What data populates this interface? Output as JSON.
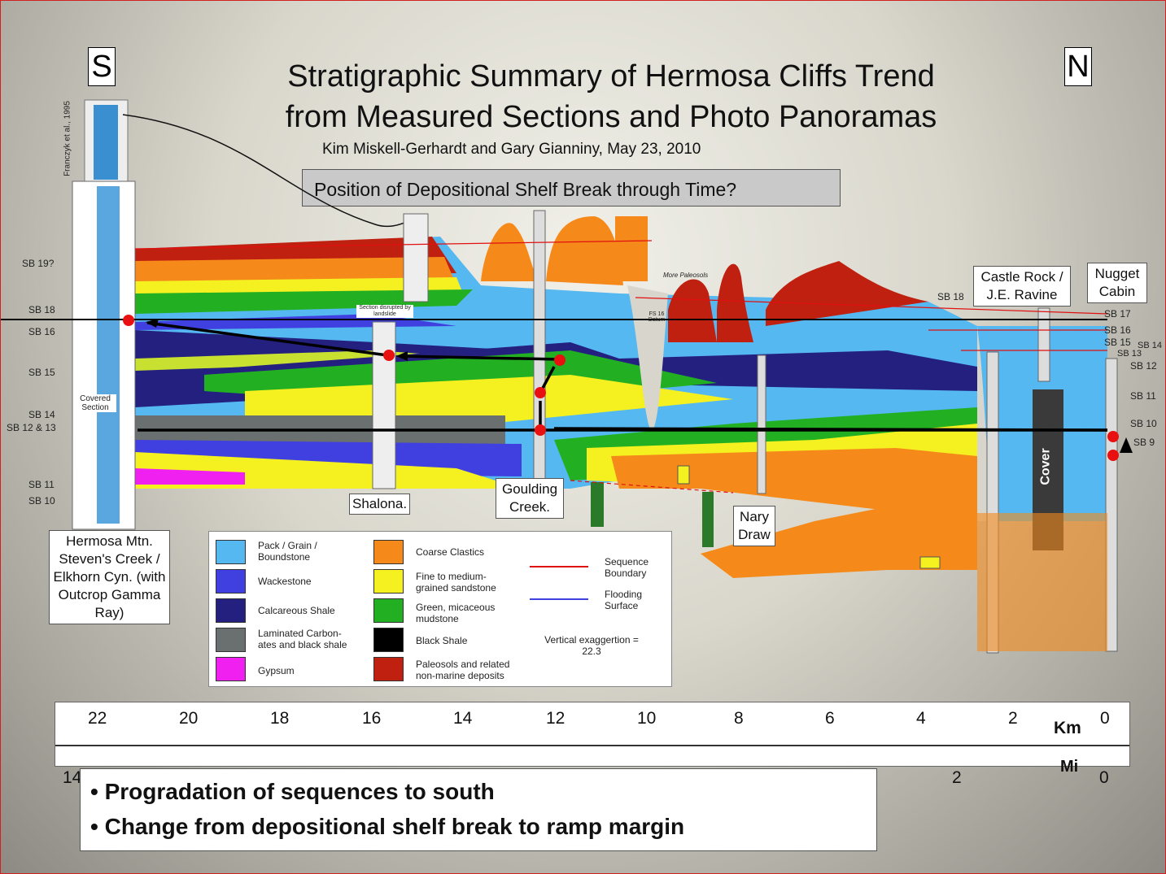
{
  "title": {
    "line1": "Stratigraphic Summary of Hermosa Cliffs Trend",
    "line2": "from Measured Sections and Photo Panoramas"
  },
  "authors": "Kim Miskell-Gerhardt and Gary Gianniny, May 23, 2010",
  "question": "Position of Depositional Shelf Break through Time?",
  "directions": {
    "south": "S",
    "north": "N"
  },
  "sb_left": [
    "SB 19?",
    "SB 18",
    "SB 16",
    "SB 15",
    "SB 14",
    "SB 12 & 13",
    "SB 11",
    "SB 10"
  ],
  "sb_right": [
    "SB 18",
    "SB 17",
    "SB 16",
    "SB 15",
    "SB 14",
    "SB 13",
    "SB 12",
    "SB 11",
    "SB 10",
    "SB 9"
  ],
  "sections": {
    "hermosa": "Hermosa Mtn. Steven's Creek / Elkhorn Cyn. (with Outcrop Gamma Ray)",
    "shalona": "Shalona.",
    "goulding": "Goulding Creek.",
    "nary": "Nary Draw",
    "castle": "Castle Rock / J.E. Ravine",
    "nugget": "Nugget Cabin"
  },
  "small_labels": {
    "franczyk": "Franczyk et al., 1995",
    "covered": "Covered Section",
    "landslide": "Section disrupted by landslide",
    "paleosols": "More Paleosols",
    "cover": "Cover",
    "fs16": "FS 16 Datum"
  },
  "legend": [
    {
      "label": "Pack / Grain / Boundstone",
      "color": "#55b8f0"
    },
    {
      "label": "Wackestone",
      "color": "#4040e0"
    },
    {
      "label": "Calcareous Shale",
      "color": "#232080"
    },
    {
      "label": "Laminated Carbon-ates and black shale",
      "color": "#6a7070"
    },
    {
      "label": "Gypsum",
      "color": "#f020f0"
    },
    {
      "label": "Coarse Clastics",
      "color": "#f58a1a"
    },
    {
      "label": "Fine to medium-grained sandstone",
      "color": "#f5f020"
    },
    {
      "label": "Green, micaceous mudstone",
      "color": "#22b022"
    },
    {
      "label": "Black Shale",
      "color": "#000000"
    },
    {
      "label": "Paleosols and related non-marine deposits",
      "color": "#c02010"
    }
  ],
  "legend_lines": [
    {
      "label": "Sequence Boundary",
      "color": "#e01010"
    },
    {
      "label": "Flooding Surface",
      "color": "#4040e0"
    }
  ],
  "exaggeration": "Vertical exaggertion = 22.3",
  "scale": {
    "km_label": "Km",
    "mi_label": "Mi",
    "km": [
      "22",
      "20",
      "18",
      "16",
      "14",
      "12",
      "10",
      "8",
      "6",
      "4",
      "2",
      "0"
    ],
    "mi": [
      "14",
      "2",
      "0"
    ]
  },
  "bullets": [
    "Progradation of sequences to south",
    "Change from depositional shelf break to ramp margin"
  ]
}
